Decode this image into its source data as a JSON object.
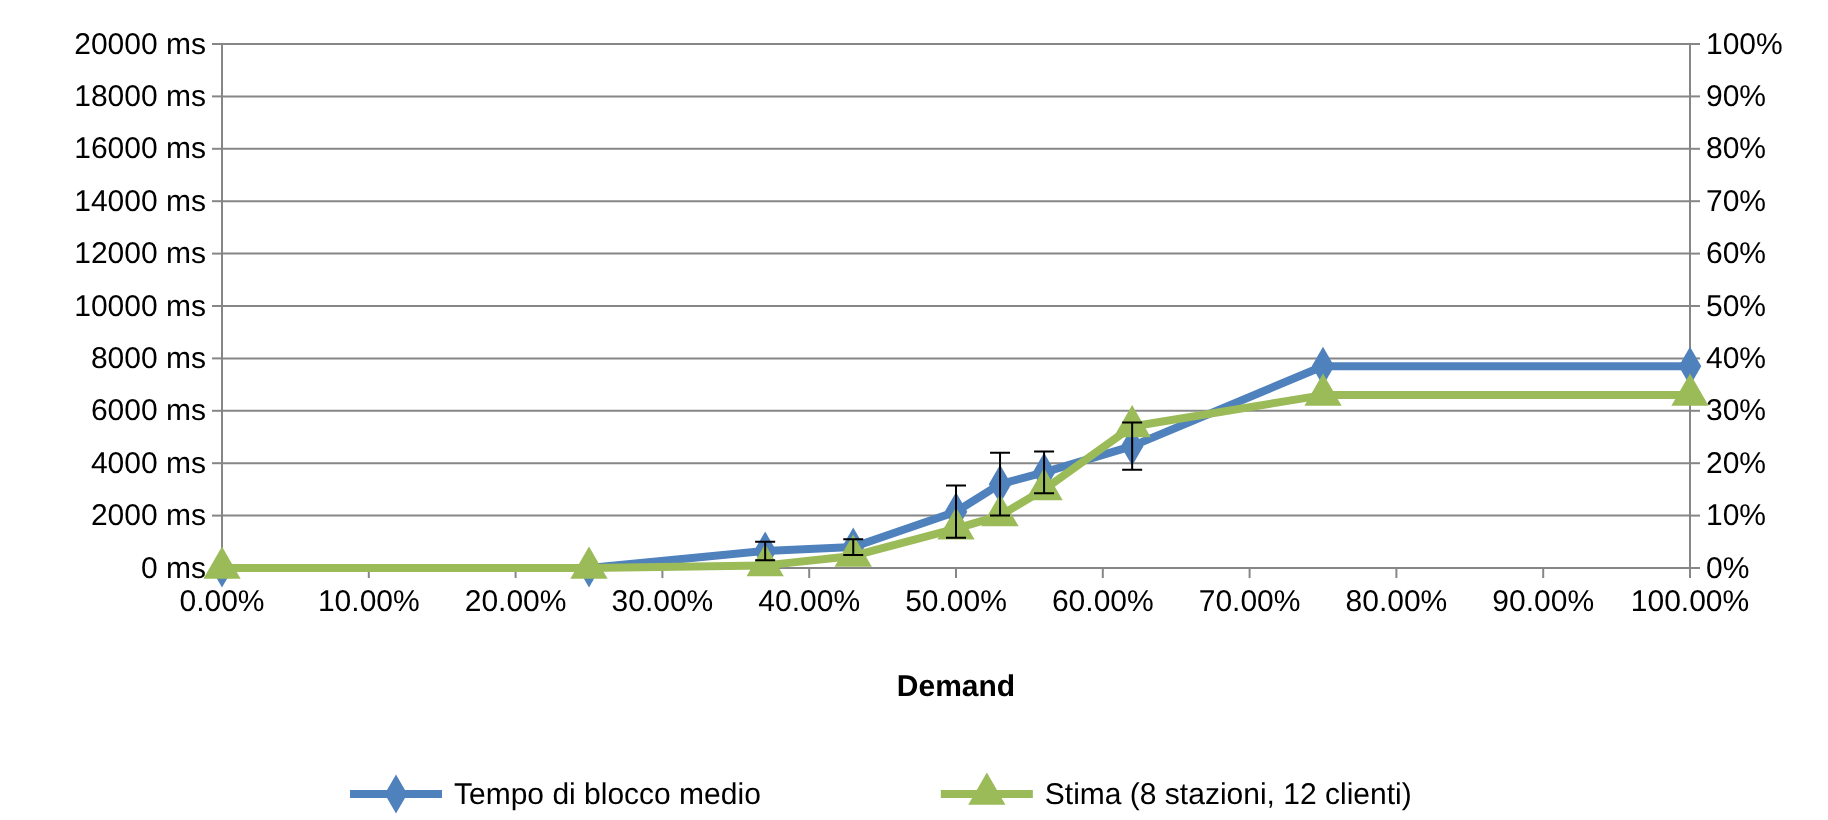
{
  "chart_data": {
    "type": "line",
    "xlabel": "Demand",
    "x": [
      0,
      25,
      37,
      43,
      50,
      53,
      56,
      62,
      75,
      100
    ],
    "xlim": [
      0,
      100
    ],
    "xticks": [
      {
        "value": 0,
        "label": "0.00%"
      },
      {
        "value": 10,
        "label": "10.00%"
      },
      {
        "value": 20,
        "label": "20.00%"
      },
      {
        "value": 30,
        "label": "30.00%"
      },
      {
        "value": 40,
        "label": "40.00%"
      },
      {
        "value": 50,
        "label": "50.00%"
      },
      {
        "value": 60,
        "label": "60.00%"
      },
      {
        "value": 70,
        "label": "70.00%"
      },
      {
        "value": 80,
        "label": "80.00%"
      },
      {
        "value": 90,
        "label": "90.00%"
      },
      {
        "value": 100,
        "label": "100.00%"
      }
    ],
    "ylim": [
      0,
      20000
    ],
    "yticks": [
      {
        "value": 0,
        "label": "0 ms"
      },
      {
        "value": 2000,
        "label": "2000 ms"
      },
      {
        "value": 4000,
        "label": "4000 ms"
      },
      {
        "value": 6000,
        "label": "6000 ms"
      },
      {
        "value": 8000,
        "label": "8000 ms"
      },
      {
        "value": 10000,
        "label": "10000 ms"
      },
      {
        "value": 12000,
        "label": "12000 ms"
      },
      {
        "value": 14000,
        "label": "14000 ms"
      },
      {
        "value": 16000,
        "label": "16000 ms"
      },
      {
        "value": 18000,
        "label": "18000 ms"
      },
      {
        "value": 20000,
        "label": "20000 ms"
      }
    ],
    "y2lim": [
      0,
      100
    ],
    "y2ticks": [
      {
        "value": 0,
        "label": "0%"
      },
      {
        "value": 10,
        "label": "10%"
      },
      {
        "value": 20,
        "label": "20%"
      },
      {
        "value": 30,
        "label": "30%"
      },
      {
        "value": 40,
        "label": "40%"
      },
      {
        "value": 50,
        "label": "50%"
      },
      {
        "value": 60,
        "label": "60%"
      },
      {
        "value": 70,
        "label": "70%"
      },
      {
        "value": 80,
        "label": "80%"
      },
      {
        "value": 90,
        "label": "90%"
      },
      {
        "value": 100,
        "label": "100%"
      }
    ],
    "grid": "y",
    "legend": "bottom",
    "series": [
      {
        "name": "Tempo di blocco medio",
        "color": "#4f81bd",
        "marker": "diamond",
        "values": [
          0,
          0,
          650,
          800,
          2150,
          3200,
          3650,
          4650,
          7700,
          7700
        ],
        "errors": [
          null,
          null,
          350,
          300,
          1000,
          1200,
          800,
          900,
          null,
          null
        ]
      },
      {
        "name": "Stima (8 stazioni, 12 clienti)",
        "color": "#9bbb59",
        "marker": "triangle",
        "axis": "y2",
        "values": [
          0,
          0,
          0.5,
          2.3,
          7.5,
          10,
          15,
          27,
          33,
          33
        ]
      }
    ]
  }
}
